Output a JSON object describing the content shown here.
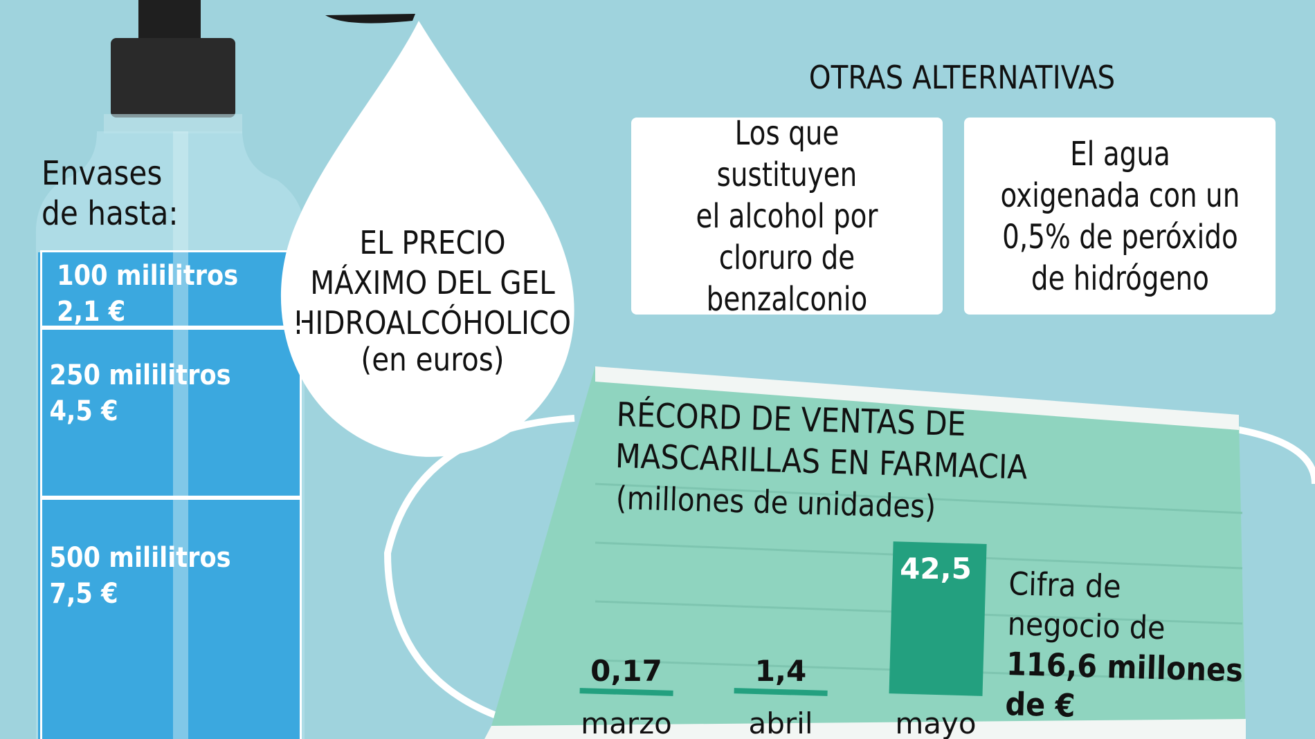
{
  "gel": {
    "title_lines": [
      "EL PRECIO",
      "MÁXIMO DEL GEL",
      "HIDROALCÓHOLICO"
    ],
    "subtitle": "(en euros)",
    "container_label_lines": [
      "Envases",
      "de hasta:"
    ],
    "sizes": [
      {
        "size": "100 mililitros",
        "price": "2,1 €"
      },
      {
        "size": "250 mililitros",
        "price": "4,5 €"
      },
      {
        "size": "500 mililitros",
        "price": "7,5 €"
      }
    ]
  },
  "alternatives": {
    "title": "OTRAS ALTERNATIVAS",
    "cards": [
      {
        "lines": [
          "Los que sustituyen",
          "el alcohol por",
          "cloruro de",
          "benzalconio"
        ]
      },
      {
        "lines": [
          "El agua",
          "oxigenada con un",
          "0,5% de peróxido",
          "de hidrógeno"
        ]
      }
    ]
  },
  "masks": {
    "title_lines": [
      "RÉCORD DE VENTAS DE",
      "MASCARILLAS EN FARMACIA"
    ],
    "subtitle": "(millones de unidades)",
    "note_lines": [
      "Cifra de",
      "negocio de"
    ],
    "note_bold_lines": [
      "116,6 millones",
      "de €"
    ]
  },
  "colors": {
    "background": "#9fd3dd",
    "mask_green": "#8fd4bf",
    "bar_green": "#23a07f",
    "gel_blue": "#3ba8df"
  },
  "chart_data": {
    "type": "bar",
    "title": "RÉCORD DE VENTAS DE MASCARILLAS EN FARMACIA",
    "subtitle": "(millones de unidades)",
    "categories": [
      "marzo",
      "abril",
      "mayo"
    ],
    "values": [
      0.17,
      1.4,
      42.5
    ],
    "value_labels": [
      "0,17",
      "1,4",
      "42,5"
    ],
    "ylim": [
      0,
      42.5
    ],
    "grid": false,
    "legend": "none"
  }
}
